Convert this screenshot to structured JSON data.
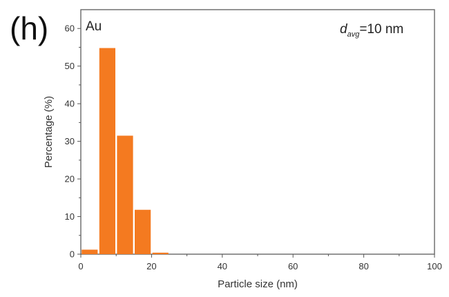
{
  "panel_label": "(h)",
  "colors": {
    "bar": "#F47A20",
    "axis": "#555555"
  },
  "chart_data": {
    "type": "bar",
    "material_label": "Au",
    "annotation": {
      "symbol": "d",
      "subscript": "avg",
      "text": "=10 nm"
    },
    "xlabel": "Particle size (nm)",
    "ylabel": "Percentage (%)",
    "xlim": [
      0,
      100
    ],
    "ylim": [
      0,
      65
    ],
    "xticks": [
      0,
      20,
      40,
      60,
      80,
      100
    ],
    "yticks": [
      0,
      10,
      20,
      30,
      40,
      50,
      60
    ],
    "bin_width": 5,
    "x": [
      2.5,
      7.5,
      12.5,
      17.5,
      22.5
    ],
    "values": [
      1.2,
      54.8,
      31.5,
      11.8,
      0.4
    ],
    "grid": false
  }
}
